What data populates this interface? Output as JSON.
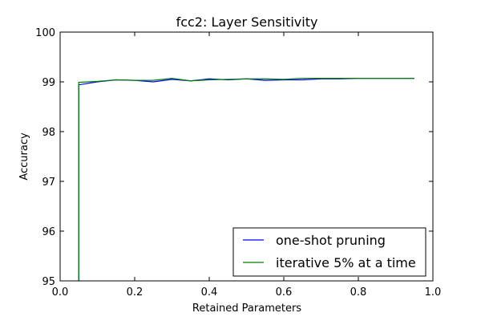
{
  "chart_data": {
    "type": "line",
    "title": "fcc2: Layer Sensitivity",
    "xlabel": "Retained Parameters",
    "ylabel": "Accuracy",
    "xlim": [
      0.0,
      1.0
    ],
    "ylim": [
      95,
      100
    ],
    "xticks": [
      "0.0",
      "0.2",
      "0.4",
      "0.6",
      "0.8",
      "1.0"
    ],
    "yticks": [
      "95",
      "96",
      "97",
      "98",
      "99",
      "100"
    ],
    "grid": false,
    "legend_position": "lower-right",
    "series": [
      {
        "name": "one-shot pruning",
        "color": "#0000ff",
        "x": [
          0.05,
          0.05,
          0.1,
          0.15,
          0.2,
          0.25,
          0.3,
          0.35,
          0.4,
          0.45,
          0.5,
          0.55,
          0.6,
          0.65,
          0.7,
          0.75,
          0.8,
          0.85,
          0.9,
          0.95
        ],
        "values": [
          94.8,
          98.94,
          99.0,
          99.04,
          99.03,
          99.0,
          99.05,
          99.02,
          99.06,
          99.04,
          99.06,
          99.03,
          99.04,
          99.04,
          99.06,
          99.06,
          99.07,
          99.07,
          99.07,
          99.07
        ]
      },
      {
        "name": "iterative 5% at a time",
        "color": "#008000",
        "x": [
          0.05,
          0.05,
          0.1,
          0.15,
          0.2,
          0.25,
          0.3,
          0.35,
          0.4,
          0.45,
          0.5,
          0.55,
          0.6,
          0.65,
          0.7,
          0.75,
          0.8,
          0.85,
          0.9,
          0.95
        ],
        "values": [
          94.8,
          98.99,
          99.01,
          99.04,
          99.03,
          99.03,
          99.07,
          99.02,
          99.04,
          99.05,
          99.06,
          99.06,
          99.05,
          99.07,
          99.07,
          99.07,
          99.07,
          99.07,
          99.07,
          99.07
        ]
      }
    ]
  }
}
